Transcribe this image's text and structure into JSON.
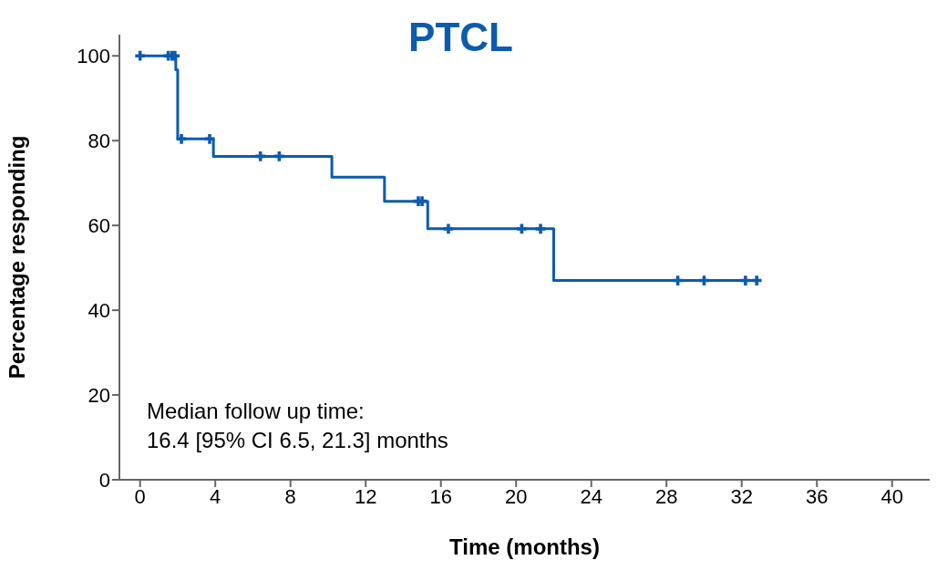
{
  "chart_data": {
    "type": "step",
    "title": "PTCL",
    "xlabel": "Time (months)",
    "ylabel": "Percentage responding",
    "xlim": [
      -1.1,
      42
    ],
    "xticks": [
      0,
      4,
      8,
      12,
      16,
      20,
      24,
      28,
      32,
      36,
      40
    ],
    "ylim": [
      0,
      105
    ],
    "yticks": [
      0,
      20,
      40,
      60,
      80,
      100
    ],
    "grid": false,
    "legend": false,
    "line_style": "solid",
    "annotations": [
      "Median follow up time:\n16.4 [95% CI 6.5, 21.3] months"
    ],
    "series": [
      {
        "color": "#0b5cad",
        "marker": "none",
        "x": [
          0,
          1.9,
          2.0,
          3.9,
          10.2,
          13.0,
          15.3,
          22.0,
          32.8
        ],
        "values": [
          100,
          96.7,
          80.4,
          76.3,
          71.4,
          65.7,
          59.2,
          47,
          47
        ]
      },
      {
        "type": "scatter",
        "color": "#0b5cad",
        "marker": "cross",
        "x": [
          0,
          1.5,
          1.7,
          1.85,
          2.2,
          3.7,
          6.4,
          7.4,
          14.8,
          15.0,
          16.4,
          20.3,
          21.3,
          28.6,
          30.0,
          32.2,
          32.8
        ],
        "values": [
          100,
          100,
          100,
          100,
          80.4,
          80.4,
          76.3,
          76.3,
          65.7,
          65.7,
          59.2,
          59.2,
          59.2,
          47,
          47,
          47,
          47
        ]
      }
    ]
  }
}
